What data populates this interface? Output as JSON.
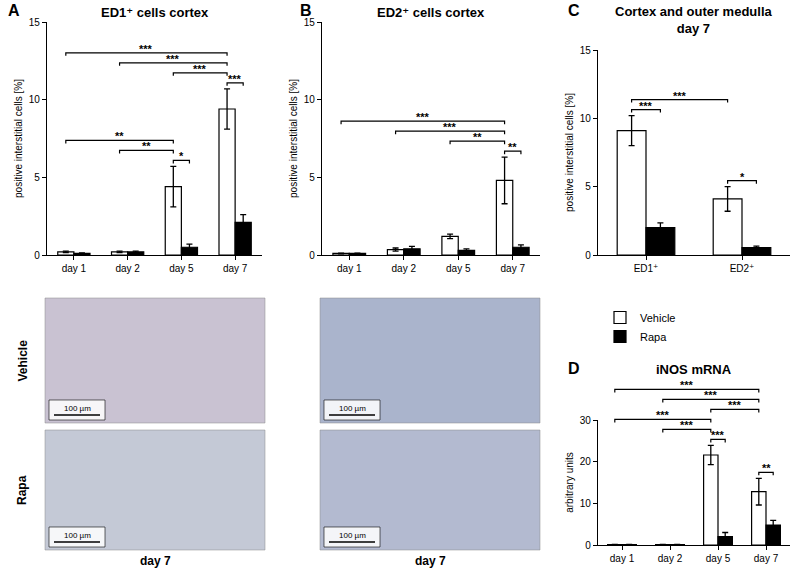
{
  "chart_data": [
    {
      "panel": "A",
      "type": "bar",
      "title": "ED1⁺ cells cortex",
      "y_label": "positive interstitial cells [%]",
      "categories": [
        "day 1",
        "day 2",
        "day 5",
        "day 7"
      ],
      "series": [
        {
          "name": "Vehicle",
          "color": "#ffffff",
          "values": [
            0.2,
            0.2,
            4.4,
            9.4
          ],
          "errors": [
            0.05,
            0.05,
            1.3,
            1.3
          ]
        },
        {
          "name": "Rapa",
          "color": "#000000",
          "values": [
            0.1,
            0.2,
            0.5,
            2.1
          ],
          "errors": [
            0.03,
            0.05,
            0.2,
            0.5
          ]
        }
      ],
      "ylim": [
        0,
        15
      ],
      "yticks": [
        0,
        5,
        10,
        15
      ],
      "grid": false,
      "brackets": [
        {
          "from": [
            2,
            0
          ],
          "to": [
            2,
            1
          ],
          "label": "*"
        },
        {
          "from": [
            1,
            0
          ],
          "to": [
            2,
            0
          ],
          "label": "**"
        },
        {
          "from": [
            0,
            0
          ],
          "to": [
            2,
            0
          ],
          "label": "**"
        },
        {
          "from": [
            3,
            0
          ],
          "to": [
            3,
            1
          ],
          "label": "***"
        },
        {
          "from": [
            2,
            0
          ],
          "to": [
            3,
            0
          ],
          "label": "***"
        },
        {
          "from": [
            1,
            0
          ],
          "to": [
            3,
            0
          ],
          "label": "***"
        },
        {
          "from": [
            0,
            0
          ],
          "to": [
            3,
            0
          ],
          "label": "***"
        }
      ]
    },
    {
      "panel": "B",
      "type": "bar",
      "title": "ED2⁺ cells cortex",
      "y_label": "positive interstitial cells [%]",
      "categories": [
        "day 1",
        "day 2",
        "day 5",
        "day 7"
      ],
      "series": [
        {
          "name": "Vehicle",
          "color": "#ffffff",
          "values": [
            0.1,
            0.35,
            1.2,
            4.8
          ],
          "errors": [
            0.02,
            0.1,
            0.15,
            1.5
          ]
        },
        {
          "name": "Rapa",
          "color": "#000000",
          "values": [
            0.1,
            0.4,
            0.3,
            0.5
          ],
          "errors": [
            0.02,
            0.15,
            0.1,
            0.15
          ]
        }
      ],
      "ylim": [
        0,
        15
      ],
      "yticks": [
        0,
        5,
        10,
        15
      ],
      "grid": false,
      "brackets": [
        {
          "from": [
            3,
            0
          ],
          "to": [
            3,
            1
          ],
          "label": "**"
        },
        {
          "from": [
            2,
            0
          ],
          "to": [
            3,
            0
          ],
          "label": "**"
        },
        {
          "from": [
            1,
            0
          ],
          "to": [
            3,
            0
          ],
          "label": "***"
        },
        {
          "from": [
            0,
            0
          ],
          "to": [
            3,
            0
          ],
          "label": "***"
        }
      ]
    },
    {
      "panel": "C",
      "type": "bar",
      "title": "Cortex and outer medulla\nday 7",
      "y_label": "positive interstitial cells [%]",
      "categories": [
        "ED1⁺",
        "ED2⁺"
      ],
      "series": [
        {
          "name": "Vehicle",
          "color": "#ffffff",
          "values": [
            9.1,
            4.1
          ],
          "errors": [
            1.1,
            0.9
          ]
        },
        {
          "name": "Rapa",
          "color": "#000000",
          "values": [
            2.0,
            0.55
          ],
          "errors": [
            0.35,
            0.1
          ]
        }
      ],
      "ylim": [
        0,
        15
      ],
      "yticks": [
        0,
        5,
        10,
        15
      ],
      "grid": false,
      "legend": "below",
      "brackets": [
        {
          "from": [
            1,
            0
          ],
          "to": [
            1,
            1
          ],
          "label": "*"
        },
        {
          "from": [
            0,
            0
          ],
          "to": [
            0,
            1
          ],
          "label": "***"
        },
        {
          "from": [
            0,
            0
          ],
          "to": [
            1,
            0
          ],
          "label": "***"
        }
      ]
    },
    {
      "panel": "D",
      "type": "bar",
      "title": "iNOS mRNA",
      "y_label": "arbitrary units",
      "categories": [
        "day 1",
        "day 2",
        "day 5",
        "day 7"
      ],
      "series": [
        {
          "name": "Vehicle",
          "color": "#ffffff",
          "values": [
            0.1,
            0.1,
            21.6,
            12.8
          ],
          "errors": [
            0.03,
            0.03,
            2.3,
            3.2
          ]
        },
        {
          "name": "Rapa",
          "color": "#000000",
          "values": [
            0.1,
            0.1,
            2.0,
            4.8
          ],
          "errors": [
            0.03,
            0.03,
            1.0,
            1.1
          ]
        }
      ],
      "ylim": [
        0,
        30
      ],
      "yticks": [
        0,
        10,
        20,
        30
      ],
      "grid": false,
      "brackets": [
        {
          "from": [
            2,
            0
          ],
          "to": [
            2,
            1
          ],
          "label": "***"
        },
        {
          "from": [
            1,
            0
          ],
          "to": [
            2,
            0
          ],
          "label": "***"
        },
        {
          "from": [
            0,
            0
          ],
          "to": [
            2,
            0
          ],
          "label": "***"
        },
        {
          "from": [
            3,
            0
          ],
          "to": [
            3,
            1
          ],
          "label": "**"
        },
        {
          "from": [
            2,
            0
          ],
          "to": [
            3,
            0
          ],
          "label": "***"
        },
        {
          "from": [
            1,
            0
          ],
          "to": [
            3,
            0
          ],
          "label": "***"
        },
        {
          "from": [
            0,
            0
          ],
          "to": [
            3,
            0
          ],
          "label": "***"
        }
      ]
    }
  ],
  "micrographs": {
    "rows": [
      "Vehicle",
      "Rapa"
    ],
    "columns": [
      "day 7",
      "day 7"
    ],
    "scale_bar": "100 µm"
  }
}
